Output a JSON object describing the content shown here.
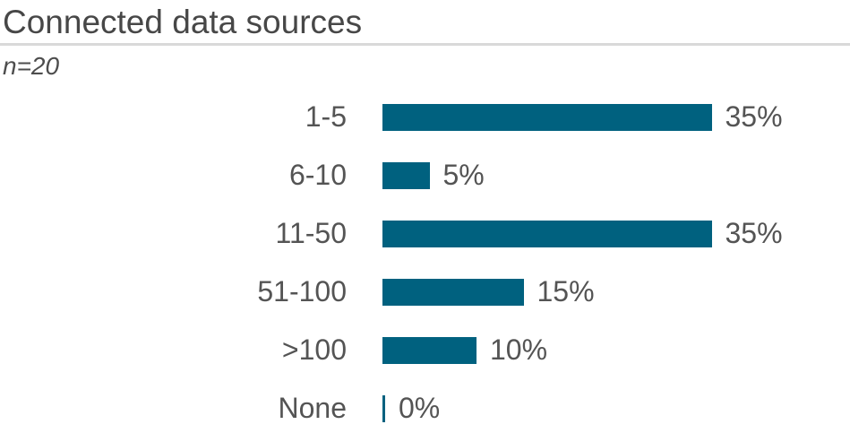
{
  "header": {
    "title": "Connected data sources",
    "sample_size_label": "n=20"
  },
  "chart_data": {
    "type": "bar",
    "orientation": "horizontal",
    "title": "Connected data sources",
    "subtitle": "n=20",
    "categories": [
      "1-5",
      "6-10",
      "11-50",
      "51-100",
      ">100",
      "None"
    ],
    "values": [
      35,
      5,
      35,
      15,
      10,
      0
    ],
    "value_labels": [
      "35%",
      "5%",
      "35%",
      "15%",
      "10%",
      "0%"
    ],
    "xlabel": "",
    "ylabel": "",
    "xlim": [
      0,
      35
    ],
    "grid": false,
    "legend": false,
    "bar_color": "#00617f",
    "text_color": "#545454",
    "separator_color": "#d9d9d9"
  }
}
